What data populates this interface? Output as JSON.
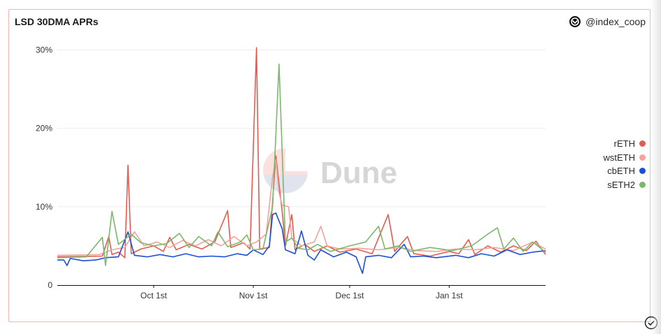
{
  "header": {
    "title": "LSD 30DMA APRs",
    "brand": "@index_coop",
    "brand_icon": "index-coop-logo-icon"
  },
  "watermark": {
    "text": "Dune"
  },
  "colors": {
    "rETH": "#e25c50",
    "wstETH": "#f2a39a",
    "cbETH": "#1a4fd6",
    "sETH2": "#7ab86a"
  },
  "chart_data": {
    "type": "line",
    "title": "LSD 30DMA APRs",
    "xlabel": "",
    "ylabel": "",
    "x_ticks": [
      "Oct 1st",
      "Nov 1st",
      "Dec 1st",
      "Jan 1st"
    ],
    "y_ticks": [
      "0",
      "10%",
      "20%",
      "30%"
    ],
    "ylim": [
      0,
      30.5
    ],
    "grid": true,
    "legend_position": "right",
    "x_start": "2022-09-01",
    "x_end": "2023-01-31",
    "series": [
      {
        "name": "rETH",
        "points": [
          [
            "2022-09-01",
            3.6
          ],
          [
            "2022-09-15",
            3.7
          ],
          [
            "2022-09-17",
            6.2
          ],
          [
            "2022-09-18",
            3.9
          ],
          [
            "2022-09-20",
            4.2
          ],
          [
            "2022-09-22",
            3.5
          ],
          [
            "2022-09-23",
            15.3
          ],
          [
            "2022-09-24",
            4.0
          ],
          [
            "2022-09-27",
            4.6
          ],
          [
            "2022-10-01",
            5.0
          ],
          [
            "2022-10-04",
            4.3
          ],
          [
            "2022-10-06",
            6.1
          ],
          [
            "2022-10-08",
            4.5
          ],
          [
            "2022-10-12",
            5.2
          ],
          [
            "2022-10-16",
            4.6
          ],
          [
            "2022-10-20",
            5.5
          ],
          [
            "2022-10-24",
            9.5
          ],
          [
            "2022-10-25",
            4.8
          ],
          [
            "2022-10-29",
            5.4
          ],
          [
            "2022-10-31",
            4.6
          ],
          [
            "2022-11-02",
            30.3
          ],
          [
            "2022-11-03",
            4.6
          ],
          [
            "2022-11-06",
            4.8
          ],
          [
            "2022-11-08",
            16.5
          ],
          [
            "2022-11-10",
            9.4
          ],
          [
            "2022-11-11",
            5.0
          ],
          [
            "2022-11-13",
            9.0
          ],
          [
            "2022-11-14",
            4.5
          ],
          [
            "2022-11-17",
            5.2
          ],
          [
            "2022-11-20",
            4.3
          ],
          [
            "2022-11-24",
            5.0
          ],
          [
            "2022-11-28",
            4.2
          ],
          [
            "2022-12-03",
            4.6
          ],
          [
            "2022-12-08",
            4.0
          ],
          [
            "2022-12-13",
            9.0
          ],
          [
            "2022-12-15",
            4.3
          ],
          [
            "2022-12-19",
            6.2
          ],
          [
            "2022-12-21",
            4.0
          ],
          [
            "2022-12-26",
            3.7
          ],
          [
            "2023-01-01",
            4.3
          ],
          [
            "2023-01-04",
            4.0
          ],
          [
            "2023-01-07",
            5.8
          ],
          [
            "2023-01-09",
            3.9
          ],
          [
            "2023-01-13",
            5.0
          ],
          [
            "2023-01-17",
            4.2
          ],
          [
            "2023-01-21",
            5.0
          ],
          [
            "2023-01-25",
            4.4
          ],
          [
            "2023-01-28",
            5.6
          ],
          [
            "2023-01-31",
            3.9
          ]
        ]
      },
      {
        "name": "wstETH",
        "points": [
          [
            "2022-09-01",
            3.8
          ],
          [
            "2022-09-14",
            3.9
          ],
          [
            "2022-09-18",
            4.5
          ],
          [
            "2022-09-22",
            4.8
          ],
          [
            "2022-09-25",
            6.8
          ],
          [
            "2022-09-28",
            5.0
          ],
          [
            "2022-10-02",
            5.5
          ],
          [
            "2022-10-06",
            4.8
          ],
          [
            "2022-10-10",
            5.7
          ],
          [
            "2022-10-14",
            5.0
          ],
          [
            "2022-10-18",
            5.8
          ],
          [
            "2022-10-22",
            5.0
          ],
          [
            "2022-10-26",
            6.2
          ],
          [
            "2022-10-30",
            5.0
          ],
          [
            "2022-11-02",
            5.5
          ],
          [
            "2022-11-05",
            6.5
          ],
          [
            "2022-11-07",
            13.8
          ],
          [
            "2022-11-08",
            16.0
          ],
          [
            "2022-11-09",
            11.8
          ],
          [
            "2022-11-10",
            10.2
          ],
          [
            "2022-11-12",
            10.0
          ],
          [
            "2022-11-13",
            6.0
          ],
          [
            "2022-11-16",
            5.0
          ],
          [
            "2022-11-20",
            5.5
          ],
          [
            "2022-11-22",
            7.5
          ],
          [
            "2022-11-24",
            5.0
          ],
          [
            "2022-11-28",
            4.6
          ],
          [
            "2022-12-04",
            4.7
          ],
          [
            "2022-12-10",
            4.5
          ],
          [
            "2022-12-16",
            4.8
          ],
          [
            "2022-12-22",
            4.4
          ],
          [
            "2022-12-28",
            4.3
          ],
          [
            "2023-01-03",
            4.6
          ],
          [
            "2023-01-09",
            4.5
          ],
          [
            "2023-01-15",
            4.8
          ],
          [
            "2023-01-21",
            4.4
          ],
          [
            "2023-01-27",
            5.5
          ],
          [
            "2023-01-31",
            4.6
          ]
        ]
      },
      {
        "name": "cbETH",
        "points": [
          [
            "2022-09-01",
            3.2
          ],
          [
            "2022-09-03",
            3.2
          ],
          [
            "2022-09-04",
            2.5
          ],
          [
            "2022-09-05",
            3.4
          ],
          [
            "2022-09-09",
            3.1
          ],
          [
            "2022-09-13",
            3.2
          ],
          [
            "2022-09-16",
            3.5
          ],
          [
            "2022-09-20",
            3.6
          ],
          [
            "2022-09-23",
            6.8
          ],
          [
            "2022-09-25",
            3.8
          ],
          [
            "2022-09-29",
            3.6
          ],
          [
            "2022-10-03",
            3.9
          ],
          [
            "2022-10-07",
            3.6
          ],
          [
            "2022-10-11",
            4.0
          ],
          [
            "2022-10-15",
            3.6
          ],
          [
            "2022-10-19",
            3.7
          ],
          [
            "2022-10-23",
            3.6
          ],
          [
            "2022-10-27",
            4.0
          ],
          [
            "2022-10-30",
            3.8
          ],
          [
            "2022-11-01",
            4.5
          ],
          [
            "2022-11-04",
            3.9
          ],
          [
            "2022-11-06",
            5.0
          ],
          [
            "2022-11-07",
            9.0
          ],
          [
            "2022-11-08",
            9.2
          ],
          [
            "2022-11-10",
            7.2
          ],
          [
            "2022-11-11",
            4.5
          ],
          [
            "2022-11-14",
            4.0
          ],
          [
            "2022-11-16",
            6.9
          ],
          [
            "2022-11-18",
            3.8
          ],
          [
            "2022-11-20",
            3.2
          ],
          [
            "2022-11-22",
            4.5
          ],
          [
            "2022-11-26",
            3.6
          ],
          [
            "2022-11-30",
            4.2
          ],
          [
            "2022-12-03",
            3.6
          ],
          [
            "2022-12-05",
            1.5
          ],
          [
            "2022-12-06",
            3.6
          ],
          [
            "2022-12-10",
            3.8
          ],
          [
            "2022-12-14",
            3.5
          ],
          [
            "2022-12-18",
            5.2
          ],
          [
            "2022-12-20",
            3.6
          ],
          [
            "2022-12-24",
            3.7
          ],
          [
            "2022-12-28",
            3.5
          ],
          [
            "2023-01-03",
            3.8
          ],
          [
            "2023-01-07",
            3.5
          ],
          [
            "2023-01-11",
            4.0
          ],
          [
            "2023-01-15",
            3.7
          ],
          [
            "2023-01-19",
            4.5
          ],
          [
            "2023-01-23",
            3.9
          ],
          [
            "2023-01-27",
            4.2
          ],
          [
            "2023-01-31",
            4.4
          ]
        ]
      },
      {
        "name": "sETH2",
        "points": [
          [
            "2022-09-01",
            3.5
          ],
          [
            "2022-09-10",
            3.6
          ],
          [
            "2022-09-15",
            6.1
          ],
          [
            "2022-09-16",
            2.5
          ],
          [
            "2022-09-18",
            9.4
          ],
          [
            "2022-09-20",
            5.2
          ],
          [
            "2022-09-24",
            6.5
          ],
          [
            "2022-09-27",
            5.4
          ],
          [
            "2022-10-01",
            5.0
          ],
          [
            "2022-10-05",
            5.3
          ],
          [
            "2022-10-09",
            6.6
          ],
          [
            "2022-10-12",
            4.8
          ],
          [
            "2022-10-15",
            6.2
          ],
          [
            "2022-10-19",
            5.0
          ],
          [
            "2022-10-21",
            6.8
          ],
          [
            "2022-10-24",
            4.9
          ],
          [
            "2022-10-28",
            5.5
          ],
          [
            "2022-10-30",
            6.4
          ],
          [
            "2022-11-01",
            4.5
          ],
          [
            "2022-11-04",
            4.6
          ],
          [
            "2022-11-07",
            10.0
          ],
          [
            "2022-11-09",
            28.2
          ],
          [
            "2022-11-11",
            5.5
          ],
          [
            "2022-11-13",
            6.0
          ],
          [
            "2022-11-15",
            4.7
          ],
          [
            "2022-11-18",
            4.5
          ],
          [
            "2022-11-21",
            5.2
          ],
          [
            "2022-11-25",
            4.3
          ],
          [
            "2022-12-01",
            5.0
          ],
          [
            "2022-12-06",
            5.5
          ],
          [
            "2022-12-10",
            7.5
          ],
          [
            "2022-12-12",
            4.6
          ],
          [
            "2022-12-16",
            5.0
          ],
          [
            "2022-12-20",
            4.3
          ],
          [
            "2022-12-26",
            4.8
          ],
          [
            "2023-01-02",
            4.4
          ],
          [
            "2023-01-08",
            5.0
          ],
          [
            "2023-01-13",
            6.5
          ],
          [
            "2023-01-16",
            7.3
          ],
          [
            "2023-01-18",
            4.6
          ],
          [
            "2023-01-21",
            6.0
          ],
          [
            "2023-01-24",
            4.3
          ],
          [
            "2023-01-27",
            5.5
          ],
          [
            "2023-01-31",
            4.2
          ]
        ]
      }
    ]
  }
}
